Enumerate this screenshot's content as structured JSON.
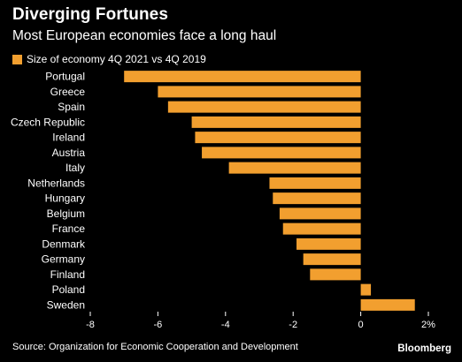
{
  "header": {
    "title": "Diverging Fortunes",
    "subtitle": "Most European economies face a long haul"
  },
  "footer": {
    "source": "Source: Organization for Economic Cooperation and Development",
    "brand": "Bloomberg"
  },
  "colors": {
    "bar": "#F29F2F",
    "background": "#000000",
    "text": "#FFFFFF",
    "axis": "#FFFFFF"
  },
  "chart_data": {
    "type": "bar",
    "orientation": "horizontal",
    "title": "Diverging Fortunes",
    "subtitle": "Most European economies face a long haul",
    "xlabel": "",
    "ylabel": "",
    "legend": {
      "placement": "top-left",
      "entries": [
        "Size of economy 4Q 2021 vs 4Q 2019"
      ]
    },
    "grid": false,
    "xlim": [
      -8,
      2
    ],
    "xticks": [
      -8,
      -6,
      -4,
      -2,
      0,
      2
    ],
    "xtick_labels": [
      "-8",
      "-6",
      "-4",
      "-2",
      "0",
      "2%"
    ],
    "categories": [
      "Portugal",
      "Greece",
      "Spain",
      "Czech Republic",
      "Ireland",
      "Austria",
      "Italy",
      "Netherlands",
      "Hungary",
      "Belgium",
      "France",
      "Denmark",
      "Germany",
      "Finland",
      "Poland",
      "Sweden"
    ],
    "series": [
      {
        "name": "Size of economy 4Q 2021 vs 4Q 2019",
        "values": [
          -7.0,
          -6.0,
          -5.7,
          -5.0,
          -4.9,
          -4.7,
          -3.9,
          -2.7,
          -2.6,
          -2.4,
          -2.3,
          -1.9,
          -1.7,
          -1.5,
          0.3,
          1.6
        ]
      }
    ]
  }
}
